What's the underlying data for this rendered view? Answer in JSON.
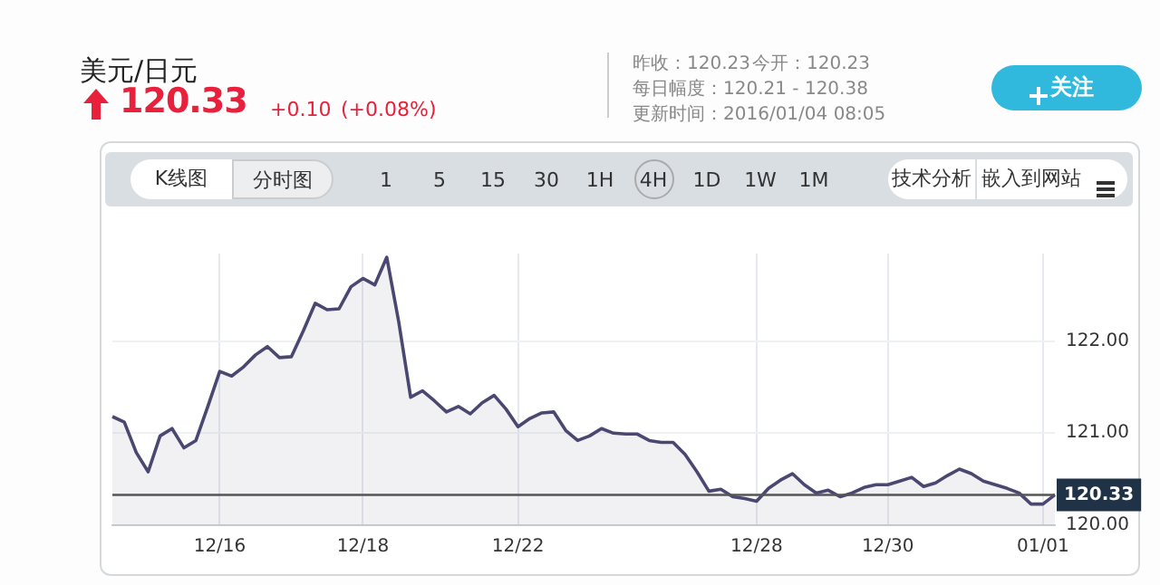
{
  "chart_data": {
    "type": "area",
    "title": "美元/日元",
    "subtitle": "120.33",
    "annotations": [
      "+0.10",
      "(+0.08%)",
      "昨收：120.23",
      "今开：120.23",
      "每日幅度：120.21 - 120.38",
      "更新时间：2016/01/04 08:05",
      "关注",
      "K线图",
      "分时图",
      "1 5 15 30 1H 4H 1D 1W 1M",
      "技术分析",
      "嵌入到网站"
    ],
    "categories": [
      null,
      null,
      null,
      null,
      null,
      null,
      null,
      null,
      null,
      "12/16",
      null,
      null,
      null,
      null,
      null,
      null,
      null,
      null,
      null,
      null,
      null,
      "12/18",
      null,
      null,
      null,
      null,
      null,
      null,
      null,
      null,
      null,
      null,
      null,
      null,
      "12/22",
      null,
      null,
      null,
      null,
      null,
      null,
      null,
      null,
      null,
      null,
      null,
      null,
      null,
      null,
      null,
      null,
      null,
      null,
      null,
      "12/28",
      null,
      null,
      null,
      null,
      null,
      null,
      null,
      null,
      null,
      null,
      "12/30",
      null,
      null,
      null,
      null,
      null,
      null,
      null,
      null,
      null,
      null,
      null,
      null,
      "01/01",
      null
    ],
    "series": [
      {
        "color": "#4a4870",
        "values": [
          121.18,
          121.12,
          120.79,
          120.58,
          120.97,
          121.05,
          120.84,
          120.92,
          121.29,
          121.67,
          121.62,
          121.72,
          121.85,
          121.94,
          121.82,
          121.83,
          122.11,
          122.41,
          122.34,
          122.35,
          122.59,
          122.68,
          122.61,
          122.91,
          122.21,
          121.39,
          121.46,
          121.35,
          121.23,
          121.29,
          121.21,
          121.33,
          121.41,
          121.26,
          121.07,
          121.16,
          121.22,
          121.23,
          121.03,
          120.92,
          120.97,
          121.05,
          121.0,
          120.99,
          120.99,
          120.92,
          120.9,
          120.9,
          120.77,
          120.58,
          120.37,
          120.39,
          120.31,
          120.29,
          120.26,
          120.4,
          120.49,
          120.56,
          120.44,
          120.35,
          120.38,
          120.31,
          120.35,
          120.41,
          120.44,
          120.44,
          120.48,
          120.52,
          120.42,
          120.46,
          120.54,
          120.61,
          120.56,
          120.48,
          120.44,
          120.4,
          120.35,
          120.23,
          120.23,
          120.33
        ]
      }
    ],
    "ylim": [
      120,
      122.95
    ],
    "yticks": [
      {
        "value": 120,
        "label": "120.00"
      },
      {
        "value": 121,
        "label": "121.00"
      },
      {
        "value": 122,
        "label": "122.00"
      }
    ],
    "ref_lines": [
      {
        "axis": "y",
        "value": 120.33,
        "label": "120.33",
        "color": "#555555"
      }
    ],
    "grid": true,
    "marker": "none"
  }
}
